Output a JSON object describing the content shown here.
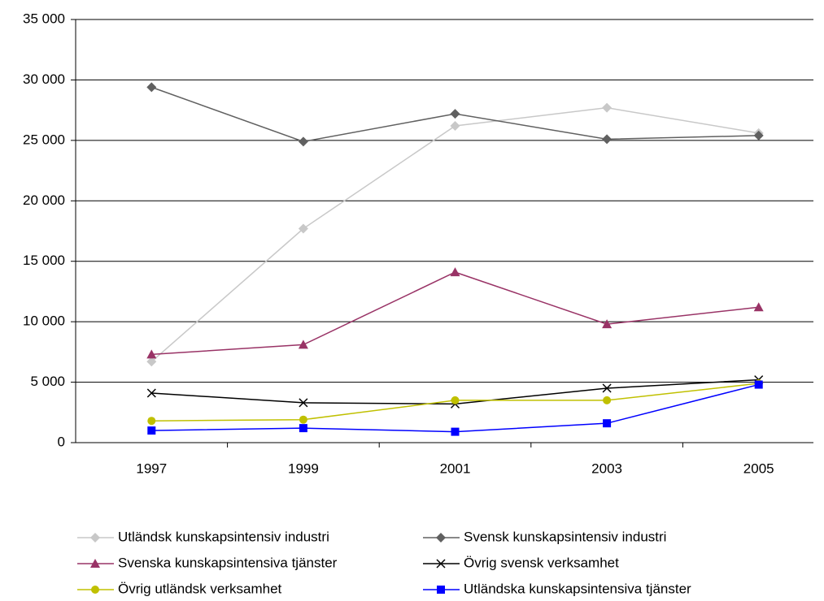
{
  "chart_data": {
    "type": "line",
    "categories": [
      "1997",
      "1999",
      "2001",
      "2003",
      "2005"
    ],
    "series": [
      {
        "name": "Utländsk kunskapsintensiv industri",
        "color": "#c8c8c8",
        "marker": "diamond",
        "values": [
          6700,
          17700,
          26200,
          27700,
          25600
        ]
      },
      {
        "name": "Svensk kunskapsintensiv industri",
        "color": "#606060",
        "marker": "diamond",
        "values": [
          29400,
          24900,
          27200,
          25100,
          25400
        ]
      },
      {
        "name": "Svenska kunskapsintensiva tjänster",
        "color": "#993366",
        "marker": "triangle",
        "values": [
          7300,
          8100,
          14100,
          9800,
          11200
        ]
      },
      {
        "name": "Övrig svensk verksamhet",
        "color": "#000000",
        "marker": "x",
        "values": [
          4100,
          3300,
          3200,
          4500,
          5200
        ]
      },
      {
        "name": "Övrig utländsk verksamhet",
        "color": "#c0c000",
        "marker": "circle",
        "values": [
          1800,
          1900,
          3500,
          3500,
          4900
        ]
      },
      {
        "name": "Utländska kunskapsintensiva tjänster",
        "color": "#0000ff",
        "marker": "square",
        "values": [
          1000,
          1200,
          900,
          1600,
          4800
        ]
      }
    ],
    "ylim": [
      0,
      35000
    ],
    "yticks": [
      {
        "value": 0,
        "label": "0"
      },
      {
        "value": 5000,
        "label": "5 000"
      },
      {
        "value": 10000,
        "label": "10 000"
      },
      {
        "value": 15000,
        "label": "15 000"
      },
      {
        "value": 20000,
        "label": "20 000"
      },
      {
        "value": 25000,
        "label": "25 000"
      },
      {
        "value": 30000,
        "label": "30 000"
      },
      {
        "value": 35000,
        "label": "35 000"
      }
    ],
    "grid": true,
    "legend": "bottom"
  }
}
